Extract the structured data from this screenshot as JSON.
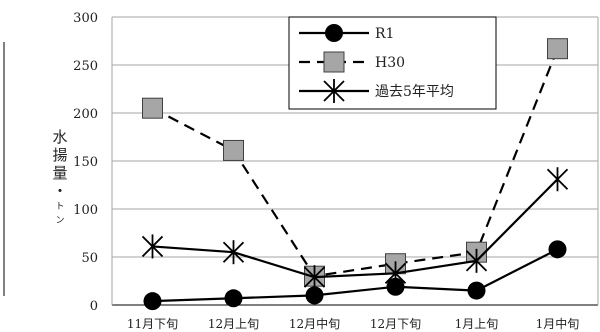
{
  "chart_data": {
    "type": "line",
    "categories": [
      "11月下旬",
      "12月上旬",
      "12月中旬",
      "12月下旬",
      "1月上旬",
      "1月中旬"
    ],
    "ylim": [
      0,
      300
    ],
    "yticks": [
      0,
      50,
      100,
      150,
      200,
      250,
      300
    ],
    "ylabel_chars": [
      "水",
      "揚",
      "量",
      "・",
      "ト",
      "ン"
    ],
    "grid": true,
    "legend_position": "top-right",
    "series": [
      {
        "name": "R1",
        "values": [
          4,
          7,
          10,
          19,
          15,
          58
        ],
        "line": "solid",
        "marker": "circle"
      },
      {
        "name": "H30",
        "values": [
          205,
          161,
          30,
          43,
          55,
          267
        ],
        "line": "dashed",
        "marker": "square"
      },
      {
        "name": "過去5年平均",
        "values": [
          61,
          55,
          29,
          33,
          46,
          131
        ],
        "line": "solid",
        "marker": "asterisk"
      }
    ]
  }
}
